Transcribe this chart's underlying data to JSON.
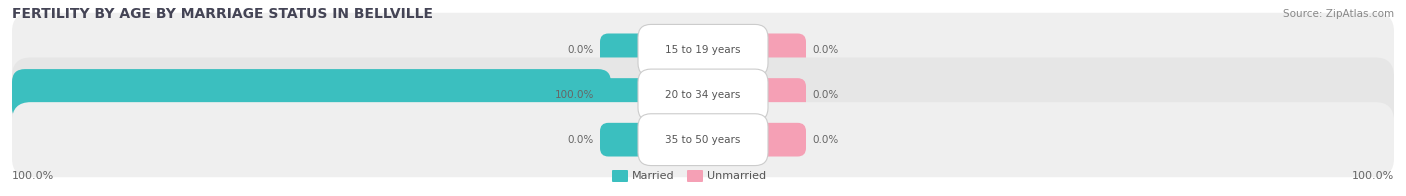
{
  "title": "FERTILITY BY AGE BY MARRIAGE STATUS IN BELLVILLE",
  "source": "Source: ZipAtlas.com",
  "rows": [
    {
      "label": "15 to 19 years",
      "married": 0.0,
      "unmarried": 0.0
    },
    {
      "label": "20 to 34 years",
      "married": 100.0,
      "unmarried": 0.0
    },
    {
      "label": "35 to 50 years",
      "married": 0.0,
      "unmarried": 0.0
    }
  ],
  "married_color": "#3bbfbf",
  "unmarried_color": "#f5a0b5",
  "row_bg_colors": [
    "#efefef",
    "#e6e6e6",
    "#efefef"
  ],
  "max_value": 100.0,
  "left_label": "100.0%",
  "right_label": "100.0%",
  "title_color": "#444455",
  "source_color": "#888888",
  "value_color": "#666666",
  "label_color": "#555555",
  "title_fontsize": 10,
  "source_fontsize": 7.5,
  "bar_label_fontsize": 7.5,
  "legend_fontsize": 8,
  "axis_label_fontsize": 8
}
